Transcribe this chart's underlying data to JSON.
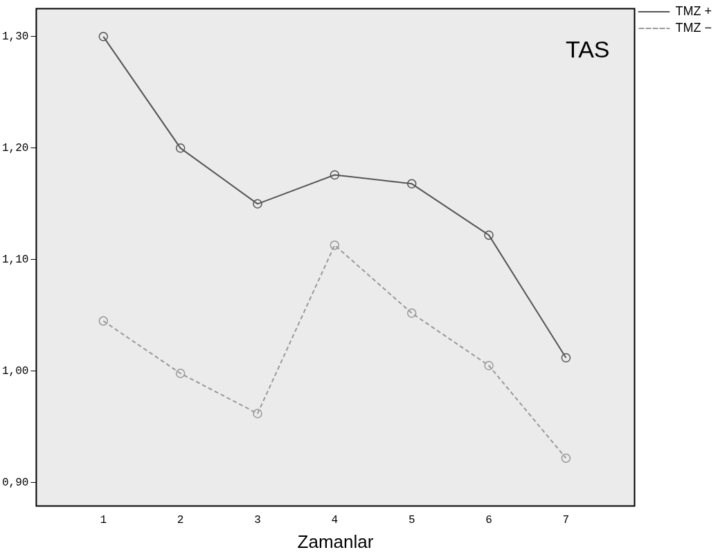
{
  "chart_data": {
    "type": "line",
    "xlabel": "Zamanlar",
    "annotations": [
      "TAS"
    ],
    "x": [
      1,
      2,
      3,
      4,
      5,
      6,
      7
    ],
    "series": [
      {
        "name": "TMZ +",
        "color": "#555555",
        "line_style": "solid",
        "values": [
          1.3,
          1.2,
          1.15,
          1.176,
          1.168,
          1.122,
          1.012
        ]
      },
      {
        "name": "TMZ −",
        "color": "#999999",
        "line_style": "dashed",
        "values": [
          1.045,
          0.998,
          0.962,
          1.113,
          1.052,
          1.005,
          0.922
        ]
      }
    ],
    "xlim": [
      0.13,
      7.89
    ],
    "xticks": [
      1,
      2,
      3,
      4,
      5,
      6,
      7
    ],
    "ylim": [
      0.879,
      1.325
    ],
    "yticks": [
      {
        "value": 0.9,
        "label": "0,90"
      },
      {
        "value": 1.0,
        "label": "1,00"
      },
      {
        "value": 1.1,
        "label": "1,10"
      },
      {
        "value": 1.2,
        "label": "1,20"
      },
      {
        "value": 1.3,
        "label": "1,30"
      }
    ],
    "marker": "circle",
    "grid": false,
    "legend": "top right"
  }
}
